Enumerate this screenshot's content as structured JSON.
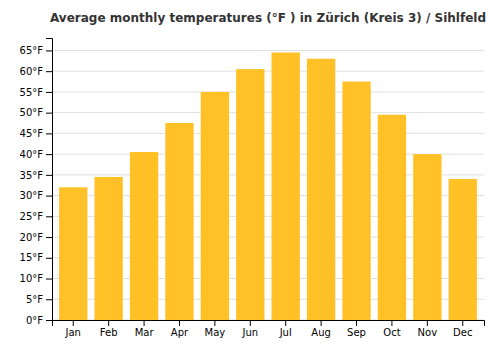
{
  "chart_data": {
    "type": "bar",
    "title": "Average monthly temperatures (°F ) in Zürich (Kreis 3) / Sihlfeld",
    "categories": [
      "Jan",
      "Feb",
      "Mar",
      "Apr",
      "May",
      "Jun",
      "Jul",
      "Aug",
      "Sep",
      "Oct",
      "Nov",
      "Dec"
    ],
    "values": [
      32,
      34.5,
      40.5,
      47.5,
      55,
      60.5,
      64.5,
      63,
      57.5,
      49.5,
      40,
      34
    ],
    "color": "#FFC125",
    "ylim": [
      0,
      68
    ],
    "yticks": [
      {
        "value": 0,
        "label": "0°F"
      },
      {
        "value": 5,
        "label": "5°F"
      },
      {
        "value": 10,
        "label": "10°F"
      },
      {
        "value": 15,
        "label": "15°F"
      },
      {
        "value": 20,
        "label": "20°F"
      },
      {
        "value": 25,
        "label": "25°F"
      },
      {
        "value": 30,
        "label": "30°F"
      },
      {
        "value": 35,
        "label": "35°F"
      },
      {
        "value": 40,
        "label": "40°F"
      },
      {
        "value": 45,
        "label": "45°F"
      },
      {
        "value": 50,
        "label": "50°F"
      },
      {
        "value": 55,
        "label": "55°F"
      },
      {
        "value": 60,
        "label": "60°F"
      },
      {
        "value": 65,
        "label": "65°F"
      }
    ],
    "grid": true
  }
}
